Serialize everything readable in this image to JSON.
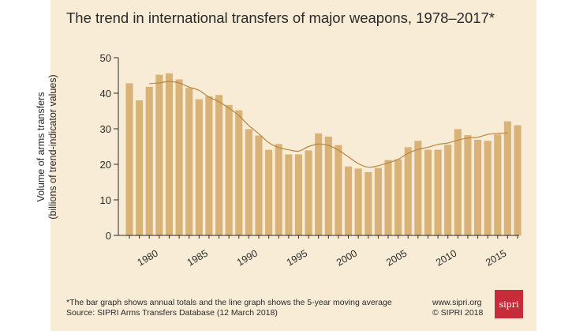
{
  "title": "The trend in international transfers of major weapons, 1978–2017*",
  "ylabel_line1": "Volume of arms transfers",
  "ylabel_line2": "(billions of trend-indicator values)",
  "footnote": "*The bar graph shows annual totals and the line graph shows the 5-year moving average",
  "source": "Source: SIPRI Arms Transfers Database (12 March 2018)",
  "website": "www.sipri.org",
  "copyright": "© SIPRI 2018",
  "logo_text": "sipri",
  "colors": {
    "bar": "#d8b277",
    "line": "#b8863f",
    "axis": "#2a2a2a",
    "panel": "#f8ecd6",
    "logo": "#c62c3a"
  },
  "chart_data": {
    "type": "bar",
    "x": [
      1978,
      1979,
      1980,
      1981,
      1982,
      1983,
      1984,
      1985,
      1986,
      1987,
      1988,
      1989,
      1990,
      1991,
      1992,
      1993,
      1994,
      1995,
      1996,
      1997,
      1998,
      1999,
      2000,
      2001,
      2002,
      2003,
      2004,
      2005,
      2006,
      2007,
      2008,
      2009,
      2010,
      2011,
      2012,
      2013,
      2014,
      2015,
      2016,
      2017
    ],
    "series": [
      {
        "values": [
          42.8,
          38.0,
          41.8,
          45.2,
          45.6,
          43.9,
          41.5,
          38.3,
          39.1,
          39.5,
          36.7,
          35.2,
          29.9,
          28.1,
          24.1,
          25.7,
          22.8,
          22.8,
          23.9,
          28.7,
          27.8,
          25.4,
          19.4,
          18.8,
          17.8,
          19.0,
          21.2,
          21.4,
          24.8,
          26.6,
          24.1,
          24.1,
          25.5,
          29.9,
          28.2,
          26.9,
          26.6,
          28.4,
          32.1,
          31.0
        ]
      },
      {
        "type": "line",
        "values": [
          null,
          null,
          42.7,
          42.9,
          43.3,
          42.9,
          41.7,
          40.8,
          38.9,
          37.6,
          35.8,
          33.7,
          30.9,
          28.6,
          26.1,
          24.7,
          24.1,
          23.7,
          25.0,
          25.7,
          25.3,
          24.0,
          22.1,
          20.2,
          19.2,
          19.6,
          20.4,
          21.4,
          23.1,
          24.2,
          24.8,
          25.6,
          26.0,
          26.8,
          27.4,
          27.6,
          28.4,
          28.7,
          28.8,
          null
        ]
      }
    ],
    "xticks": [
      1980,
      1985,
      1990,
      1995,
      2000,
      2005,
      2010,
      2015
    ],
    "yticks": [
      0,
      10,
      20,
      30,
      40,
      50
    ],
    "ylim": [
      0,
      50
    ],
    "xlabel": "",
    "ylabel": "Volume of arms transfers (billions of trend-indicator values)",
    "grid": false
  }
}
